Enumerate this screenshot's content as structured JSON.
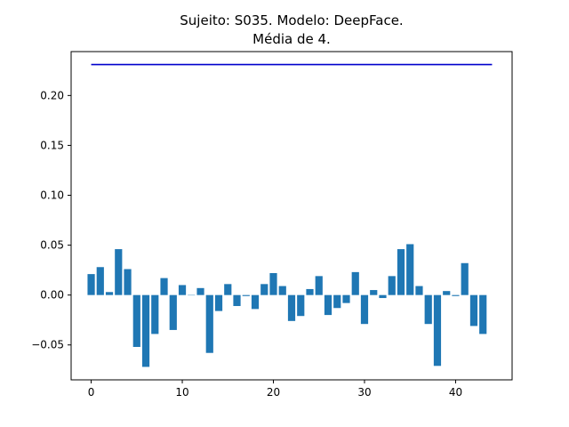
{
  "chart_data": {
    "type": "bar",
    "title": "Sujeito: S035. Modelo: DeepFace.",
    "subtitle": "Média de 4.",
    "xlabel": "",
    "ylabel": "",
    "xlim": [
      -2.2,
      46.2
    ],
    "ylim": [
      -0.085,
      0.244
    ],
    "x_ticks": [
      0,
      10,
      20,
      30,
      40
    ],
    "y_ticks": [
      -0.05,
      0.0,
      0.05,
      0.1,
      0.15,
      0.2
    ],
    "y_tick_labels": [
      "−0.05",
      "0.00",
      "0.05",
      "0.10",
      "0.15",
      "0.20"
    ],
    "grid": false,
    "bar_color": "#1f77b4",
    "reference_line": {
      "x_start": 0,
      "x_end": 44,
      "y": 0.231,
      "color": "#0000cc"
    },
    "x": [
      0,
      1,
      2,
      3,
      4,
      5,
      6,
      7,
      8,
      9,
      10,
      11,
      12,
      13,
      14,
      15,
      16,
      17,
      18,
      19,
      20,
      21,
      22,
      23,
      24,
      25,
      26,
      27,
      28,
      29,
      30,
      31,
      32,
      33,
      34,
      35,
      36,
      37,
      38,
      39,
      40,
      41,
      42,
      43
    ],
    "values": [
      0.021,
      0.028,
      0.003,
      0.046,
      0.026,
      -0.052,
      -0.072,
      -0.039,
      0.017,
      -0.035,
      0.01,
      0.0,
      0.007,
      -0.058,
      -0.016,
      0.011,
      -0.011,
      -0.001,
      -0.014,
      0.011,
      0.022,
      0.009,
      -0.026,
      -0.021,
      0.006,
      0.019,
      -0.02,
      -0.013,
      -0.008,
      0.023,
      -0.029,
      0.005,
      -0.003,
      0.019,
      0.046,
      0.051,
      0.009,
      -0.029,
      -0.071,
      0.004,
      -0.001,
      0.032,
      -0.031,
      -0.039
    ]
  }
}
